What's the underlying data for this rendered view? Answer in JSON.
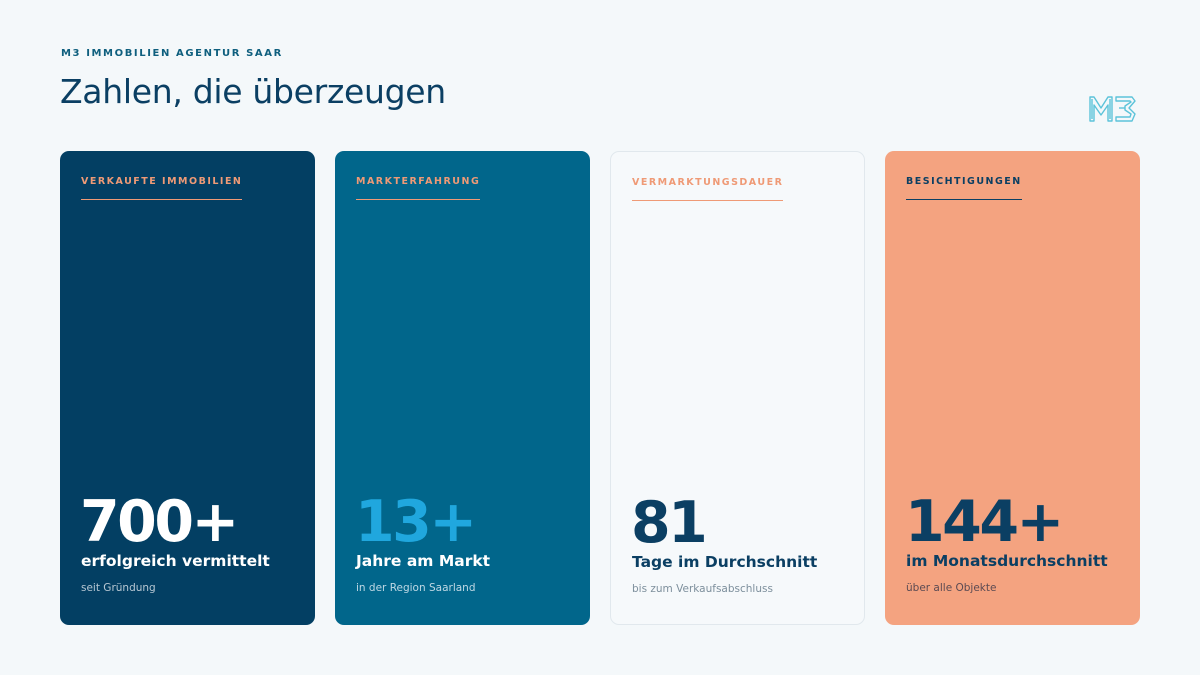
{
  "header": {
    "eyebrow": "M3 IMMOBILIEN AGENTUR SAAR",
    "title": "Zahlen, die überzeugen",
    "logo_text": "M3"
  },
  "colors": {
    "navy": "#033f63",
    "teal": "#01668b",
    "light": "#f6f9fb",
    "salmon": "#f4a380",
    "accent_blue": "#20a7de",
    "accent_orange": "#ef9a76"
  },
  "cards": [
    {
      "label": "VERKAUFTE IMMOBILIEN",
      "number": "700+",
      "sub": "erfolgreich vermittelt",
      "note": "seit Gründung"
    },
    {
      "label": "MARKTERFAHRUNG",
      "number": "13+",
      "sub": "Jahre am Markt",
      "note": "in der Region Saarland"
    },
    {
      "label": "VERMARKTUNGSDAUER",
      "number": "81",
      "sub": "Tage im Durchschnitt",
      "note": "bis zum Verkaufsabschluss"
    },
    {
      "label": "BESICHTIGUNGEN",
      "number": "144+",
      "sub": "im Monatsdurchschnitt",
      "note": "über alle Objekte"
    }
  ]
}
